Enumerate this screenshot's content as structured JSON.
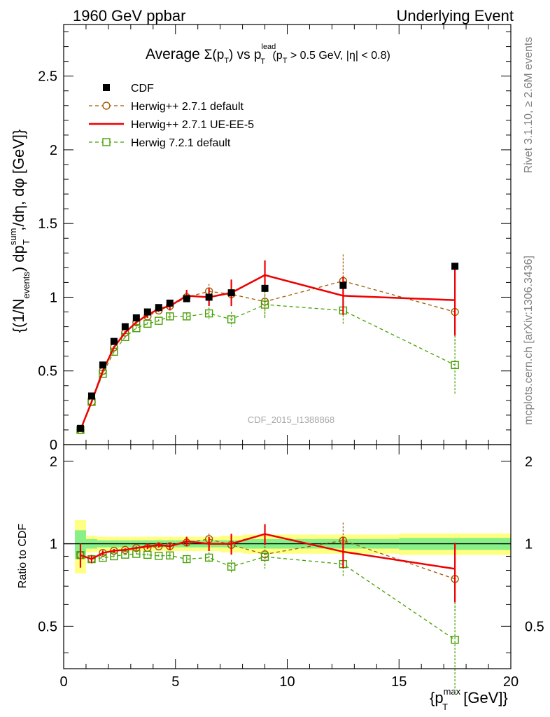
{
  "header": {
    "left": "1960 GeV ppbar",
    "right": "Underlying Event"
  },
  "side": {
    "rivet": "Rivet 3.1.10, ≥ 2.6M events",
    "mcplots": "mcplots.cern.ch [arXiv:1306.3436]"
  },
  "watermark": "CDF_2015_I1388868",
  "chart_data": {
    "type": "line",
    "title_parts": {
      "pre": "Average ",
      "sigma": "Σ(p",
      "T1": "T",
      "close": ") vs p",
      "lead": "lead",
      "T2": "T",
      "cut": " (p",
      "T3": "T",
      "cut2": " > 0.5 GeV, |η| < 0.8)"
    },
    "ylabel_parts": {
      "a": "{(1/N",
      "events": "events",
      "b": ") dp",
      "sum": "sum",
      "T": "T",
      "c": ",/dη, dφ [GeV]}"
    },
    "ratio_ylabel": "Ratio to CDF",
    "xlabel_parts": {
      "a": "{p",
      "max": "max",
      "T": "T",
      "b": " [GeV]}"
    },
    "xlim": [
      0,
      20
    ],
    "ylim_main": [
      0,
      2.85
    ],
    "ylim_ratio": [
      0.35,
      2.3
    ],
    "x_ticks": [
      "0",
      "5",
      "10",
      "15",
      "20"
    ],
    "y_ticks_main": [
      "0",
      "0.5",
      "1",
      "1.5",
      "2",
      "2.5"
    ],
    "y_ticks_ratio": [
      "0.5",
      "1",
      "2"
    ],
    "legend_position": "top-left",
    "bins": [
      0.5,
      1.0,
      1.5,
      2.0,
      2.5,
      3.0,
      3.5,
      4.0,
      4.5,
      5.0,
      6.0,
      7.0,
      8.0,
      10.0,
      15.0,
      20.0
    ],
    "x": [
      0.75,
      1.25,
      1.75,
      2.25,
      2.75,
      3.25,
      3.75,
      4.25,
      4.75,
      5.5,
      6.5,
      7.5,
      9.0,
      12.5,
      17.5
    ],
    "cdf": [
      0.11,
      0.33,
      0.54,
      0.7,
      0.8,
      0.86,
      0.9,
      0.93,
      0.96,
      0.99,
      1.0,
      1.03,
      1.06,
      1.08,
      1.21
    ],
    "ratio_band_inner": [
      0.12,
      0.04,
      0.03,
      0.03,
      0.03,
      0.03,
      0.03,
      0.03,
      0.03,
      0.03,
      0.03,
      0.03,
      0.04,
      0.04,
      0.05
    ],
    "ratio_band_outer": [
      0.22,
      0.07,
      0.06,
      0.06,
      0.06,
      0.06,
      0.06,
      0.06,
      0.06,
      0.06,
      0.06,
      0.07,
      0.08,
      0.08,
      0.09
    ],
    "series": [
      {
        "name": "CDF",
        "color": "#000000",
        "marker": "filled-square",
        "values": [
          0.11,
          0.33,
          0.54,
          0.7,
          0.8,
          0.86,
          0.9,
          0.93,
          0.96,
          0.99,
          1.0,
          1.03,
          1.06,
          1.08,
          1.21
        ]
      },
      {
        "name": "Herwig++ 2.7.1 default",
        "color": "#a05a00",
        "marker": "open-circle",
        "line": "dashed",
        "values": [
          0.1,
          0.29,
          0.5,
          0.66,
          0.76,
          0.83,
          0.87,
          0.91,
          0.94,
          1.0,
          1.04,
          1.02,
          0.97,
          1.11,
          0.9
        ],
        "errors": [
          0.01,
          0.01,
          0.01,
          0.01,
          0.01,
          0.01,
          0.01,
          0.01,
          0.02,
          0.02,
          0.05,
          0.06,
          0.1,
          0.18,
          0.22
        ]
      },
      {
        "name": "Herwig++ 2.7.1 UE-EE-5",
        "color": "#ee0000",
        "marker": "none",
        "line": "solid",
        "values": [
          0.1,
          0.29,
          0.5,
          0.66,
          0.76,
          0.83,
          0.88,
          0.92,
          0.94,
          1.01,
          1.0,
          1.03,
          1.15,
          1.01,
          0.98
        ],
        "errors": [
          0.01,
          0.01,
          0.01,
          0.01,
          0.01,
          0.01,
          0.02,
          0.02,
          0.03,
          0.04,
          0.06,
          0.09,
          0.1,
          0.13,
          0.24
        ]
      },
      {
        "name": "Herwig 7.2.1 default",
        "color": "#44a000",
        "marker": "open-square",
        "line": "dashed",
        "values": [
          0.1,
          0.29,
          0.48,
          0.63,
          0.73,
          0.79,
          0.82,
          0.84,
          0.87,
          0.87,
          0.89,
          0.85,
          0.95,
          0.91,
          0.54
        ],
        "errors": [
          0.01,
          0.01,
          0.01,
          0.01,
          0.01,
          0.01,
          0.01,
          0.01,
          0.02,
          0.02,
          0.04,
          0.05,
          0.09,
          0.09,
          0.2
        ]
      }
    ]
  }
}
